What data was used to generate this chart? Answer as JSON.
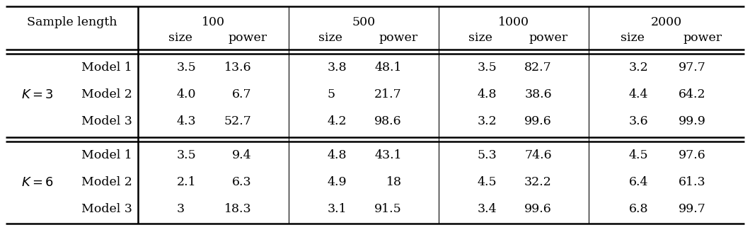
{
  "k3_rows": [
    [
      "Model 1",
      "3.5",
      "13.6",
      "3.8",
      "48.1",
      "3.5",
      "82.7",
      "3.2",
      "97.7"
    ],
    [
      "Model 2",
      "4.0",
      "6.7",
      "5",
      "21.7",
      "4.8",
      "38.6",
      "4.4",
      "64.2"
    ],
    [
      "Model 3",
      "4.3",
      "52.7",
      "4.2",
      "98.6",
      "3.2",
      "99.6",
      "3.6",
      "99.9"
    ]
  ],
  "k6_rows": [
    [
      "Model 1",
      "3.5",
      "9.4",
      "4.8",
      "43.1",
      "5.3",
      "74.6",
      "4.5",
      "97.6"
    ],
    [
      "Model 2",
      "2.1",
      "6.3",
      "4.9",
      "18",
      "4.5",
      "32.2",
      "6.4",
      "61.3"
    ],
    [
      "Model 3",
      "3",
      "18.3",
      "3.1",
      "91.5",
      "3.4",
      "99.6",
      "6.8",
      "99.7"
    ]
  ],
  "k3_label": "$K = 3$",
  "k6_label": "$K = 6$",
  "bg_color": "#ffffff",
  "text_color": "#000000",
  "font_size": 12.5,
  "sample_lengths": [
    "100",
    "500",
    "1000",
    "2000"
  ],
  "col_headers": [
    "size",
    "power"
  ]
}
